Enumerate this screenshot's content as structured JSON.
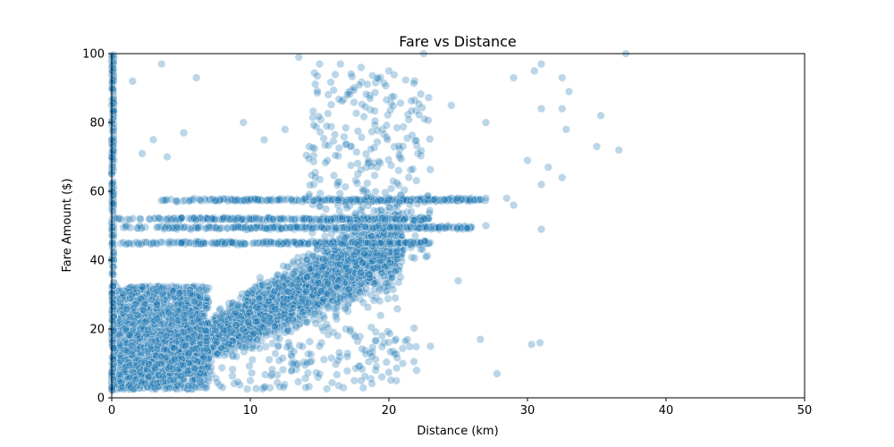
{
  "chart_data": {
    "type": "scatter",
    "title": "Fare vs Distance",
    "xlabel": "Distance (km)",
    "ylabel": "Fare Amount ($)",
    "xlim": [
      0,
      50
    ],
    "ylim": [
      0,
      100
    ],
    "xticks": [
      0,
      10,
      20,
      30,
      40,
      50
    ],
    "yticks": [
      0,
      20,
      40,
      60,
      80,
      100
    ],
    "grid": false,
    "point_color": "#1f77b4",
    "point_alpha": 0.3,
    "series": [
      {
        "points_sample": [
          [
            0.0,
            99
          ],
          [
            0.0,
            90
          ],
          [
            0.0,
            85
          ],
          [
            0.0,
            80
          ],
          [
            0.0,
            75
          ],
          [
            0.0,
            70
          ],
          [
            0.0,
            65
          ],
          [
            0.0,
            60
          ],
          [
            0.5,
            52
          ],
          [
            1.0,
            50
          ],
          [
            2.0,
            50
          ],
          [
            3.0,
            45
          ],
          [
            4.0,
            50
          ],
          [
            5.0,
            45
          ],
          [
            1.5,
            92
          ],
          [
            3.6,
            97
          ],
          [
            6.1,
            93
          ],
          [
            5.2,
            77
          ],
          [
            2.2,
            71
          ],
          [
            3.0,
            75
          ],
          [
            4.0,
            70
          ],
          [
            9.5,
            80
          ],
          [
            11.0,
            75
          ],
          [
            12.5,
            78
          ],
          [
            13.5,
            99
          ],
          [
            15.0,
            97
          ],
          [
            16.5,
            97
          ],
          [
            18.0,
            96
          ],
          [
            20.0,
            95
          ],
          [
            22.5,
            100
          ],
          [
            24.5,
            85
          ],
          [
            27.0,
            80
          ],
          [
            29.0,
            93
          ],
          [
            30.5,
            95
          ],
          [
            31.0,
            97
          ],
          [
            32.5,
            93
          ],
          [
            33.0,
            89
          ],
          [
            31.0,
            84
          ],
          [
            32.5,
            84
          ],
          [
            32.8,
            78
          ],
          [
            35.3,
            82
          ],
          [
            35.0,
            73
          ],
          [
            36.6,
            72
          ],
          [
            37.1,
            100
          ],
          [
            30.0,
            69
          ],
          [
            31.5,
            67
          ],
          [
            31.0,
            62
          ],
          [
            32.5,
            64
          ],
          [
            25.0,
            58
          ],
          [
            27.0,
            58
          ],
          [
            28.5,
            58
          ],
          [
            29.0,
            56
          ],
          [
            31.0,
            49
          ],
          [
            27.0,
            50
          ],
          [
            26.6,
            17
          ],
          [
            27.8,
            7
          ],
          [
            30.3,
            15.5
          ],
          [
            30.9,
            16
          ],
          [
            23.0,
            15
          ],
          [
            25.0,
            34
          ],
          [
            19.5,
            18
          ],
          [
            20.5,
            17
          ],
          [
            21.0,
            10
          ],
          [
            22.0,
            8
          ],
          [
            17.0,
            12
          ],
          [
            18.0,
            5
          ],
          [
            15.0,
            15
          ],
          [
            10.0,
            5
          ],
          [
            11.0,
            3
          ],
          [
            12.0,
            15
          ],
          [
            13.0,
            8
          ],
          [
            14.0,
            3
          ],
          [
            8.0,
            3
          ],
          [
            9.0,
            12
          ]
        ]
      }
    ]
  }
}
